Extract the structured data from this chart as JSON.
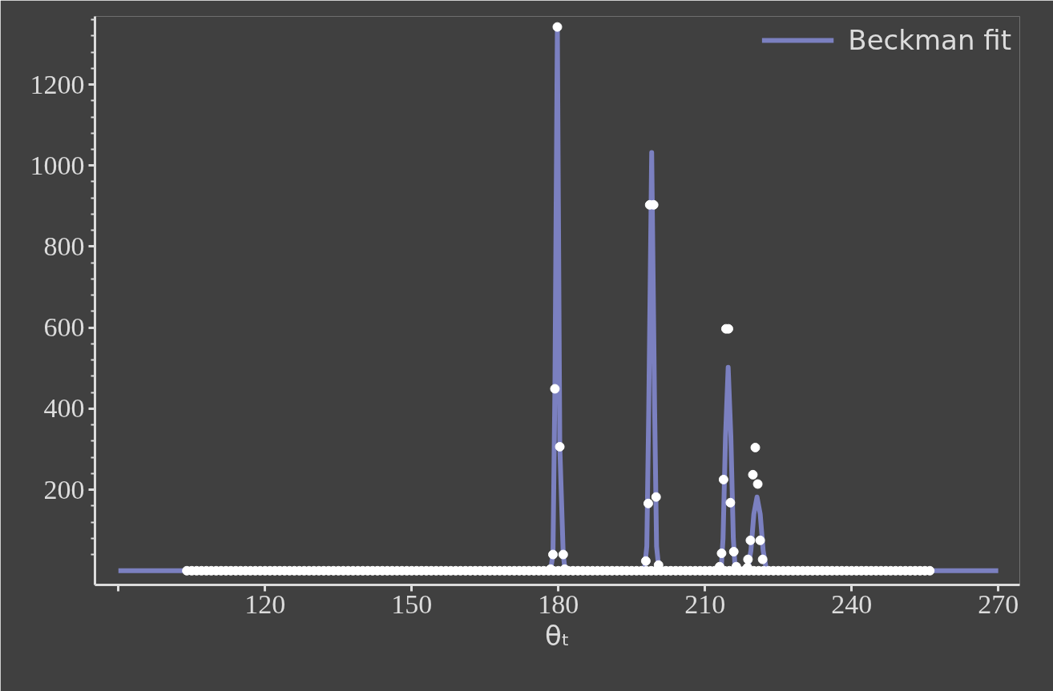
{
  "chart_data": {
    "type": "line",
    "xlabel": "θₜ",
    "xlim": [
      85.2,
      274.4
    ],
    "ylim": [
      -35,
      1368
    ],
    "xticks": [
      {
        "value": 90,
        "label": null
      },
      120,
      150,
      180,
      210,
      240,
      270
    ],
    "yticks": [
      200,
      400,
      600,
      800,
      1000,
      1200
    ],
    "grid": false,
    "legend": "top right",
    "line_style": "solid",
    "series": [
      {
        "name": "Beckman fit",
        "color": "#7b80c0",
        "x": [
          90,
          178.4,
          178.9,
          179.3,
          179.8,
          180.3,
          181.0,
          181.4,
          197.6,
          198.1,
          198.5,
          199.1,
          199.7,
          200.1,
          200.6,
          213.3,
          213.7,
          214.2,
          214.75,
          215.3,
          215.8,
          216.2,
          218.7,
          219.4,
          220.0,
          220.65,
          221.3,
          221.9,
          222.6,
          270
        ],
        "values": [
          0,
          0,
          40,
          450,
          1340,
          306,
          40,
          0,
          0,
          60,
          400,
          1032,
          400,
          60,
          0,
          0,
          80,
          330,
          502,
          330,
          80,
          0,
          0,
          50,
          140,
          182,
          140,
          50,
          0,
          0
        ]
      },
      {
        "type": "scatter",
        "marker": "circle",
        "color": "#ffffff",
        "x": [
          104,
          105,
          106,
          107,
          108,
          109,
          110,
          111,
          112,
          113,
          114,
          115,
          116,
          117,
          118,
          119,
          120,
          121,
          122,
          123,
          124,
          125,
          126,
          127,
          128,
          129,
          130,
          131,
          132,
          133,
          134,
          135,
          136,
          137,
          138,
          139,
          140,
          141,
          142,
          143,
          144,
          145,
          146,
          147,
          148,
          149,
          150,
          151,
          152,
          153,
          154,
          155,
          156,
          157,
          158,
          159,
          160,
          161,
          162,
          163,
          164,
          165,
          166,
          167,
          168,
          169,
          170,
          171,
          172,
          173,
          174,
          175,
          176,
          177,
          178,
          179,
          180,
          181,
          182,
          183,
          184,
          185,
          186,
          187,
          188,
          189,
          190,
          191,
          192,
          193,
          194,
          195,
          196,
          197,
          198,
          199,
          200,
          201,
          202,
          203,
          204,
          205,
          206,
          207,
          208,
          209,
          210,
          211,
          212,
          213,
          214,
          215,
          216,
          217,
          218,
          219,
          220,
          221,
          222,
          223,
          224,
          225,
          226,
          227,
          228,
          229,
          230,
          231,
          232,
          233,
          234,
          235,
          236,
          237,
          238,
          239,
          240,
          241,
          242,
          243,
          244,
          245,
          246,
          247,
          248,
          249,
          250,
          251,
          252,
          253,
          254,
          255,
          256,
          179.8,
          179.3,
          180.3,
          178.9,
          181.0,
          178.4,
          181.3,
          198.7,
          199.5,
          198.4,
          200.0,
          197.9,
          200.5,
          214.3,
          214.8,
          213.8,
          215.2,
          213.4,
          215.9,
          213.0,
          216.4,
          220.3,
          219.8,
          220.8,
          219.3,
          221.3,
          218.8,
          221.8,
          218.7
        ],
        "values": [
          0,
          0,
          0,
          0,
          0,
          0,
          0,
          0,
          0,
          0,
          0,
          0,
          0,
          0,
          0,
          0,
          0,
          0,
          0,
          0,
          0,
          0,
          0,
          0,
          0,
          0,
          0,
          0,
          0,
          0,
          0,
          0,
          0,
          0,
          0,
          0,
          0,
          0,
          0,
          0,
          0,
          0,
          0,
          0,
          0,
          0,
          0,
          0,
          0,
          0,
          0,
          0,
          0,
          0,
          0,
          0,
          0,
          0,
          0,
          0,
          0,
          0,
          0,
          0,
          0,
          0,
          0,
          0,
          0,
          0,
          0,
          0,
          0,
          0,
          0,
          0,
          0,
          0,
          0,
          0,
          0,
          0,
          0,
          0,
          0,
          0,
          0,
          0,
          0,
          0,
          0,
          0,
          0,
          0,
          0,
          0,
          0,
          0,
          0,
          0,
          0,
          0,
          0,
          0,
          0,
          0,
          0,
          0,
          0,
          0,
          0,
          0,
          0,
          0,
          0,
          0,
          0,
          0,
          0,
          0,
          0,
          0,
          0,
          0,
          0,
          0,
          0,
          0,
          0,
          0,
          0,
          0,
          0,
          0,
          0,
          0,
          0,
          0,
          0,
          0,
          0,
          0,
          0,
          0,
          0,
          0,
          0,
          0,
          0,
          0,
          0,
          0,
          0,
          1342,
          449,
          306,
          40,
          40,
          4,
          4,
          903,
          903,
          166,
          182,
          24,
          14,
          597,
          597,
          225,
          168,
          43,
          47,
          10,
          10,
          304,
          237,
          214,
          75,
          75,
          28,
          28,
          8
        ]
      }
    ]
  }
}
